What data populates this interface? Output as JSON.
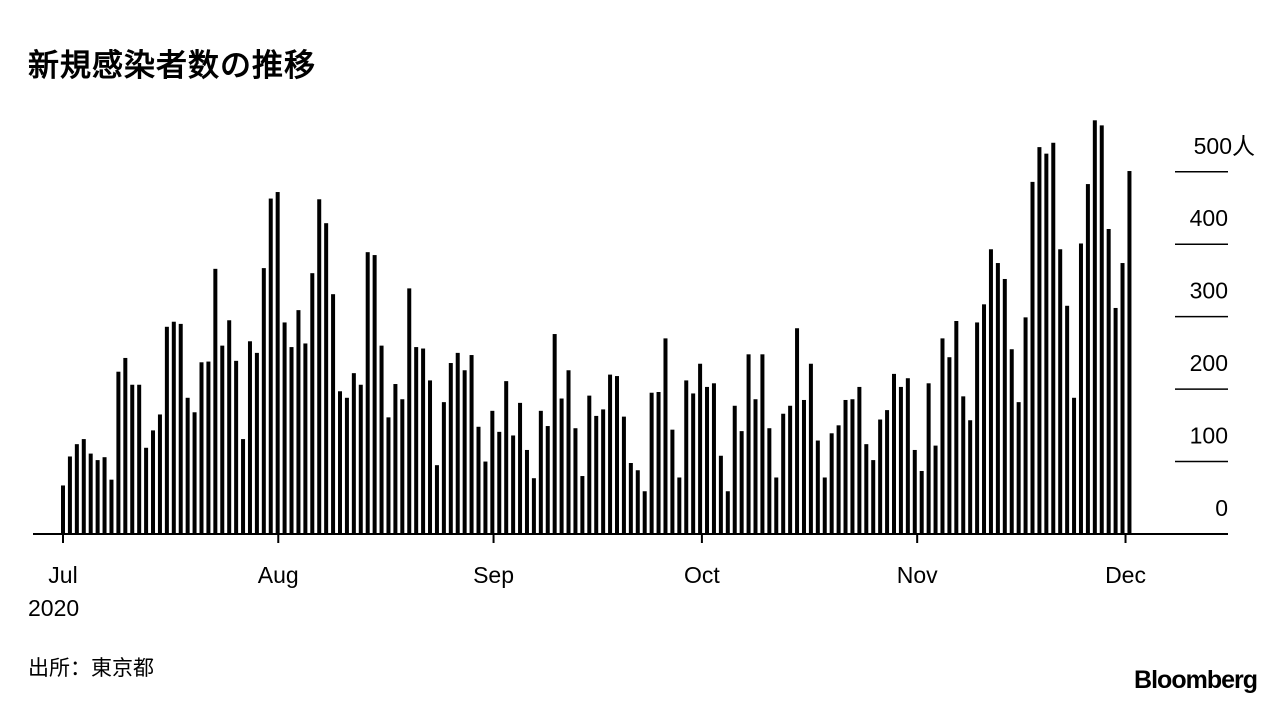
{
  "title": "新規感染者数の推移",
  "source": "出所：東京都",
  "logo": "Bloomberg",
  "chart_data": {
    "type": "bar",
    "title": "新規感染者数の推移",
    "x_start": "2020-07-01",
    "x_end": "2020-12-02",
    "x_ticks": [
      {
        "label": "Jul",
        "date": "2020-07-01"
      },
      {
        "label": "Aug",
        "date": "2020-08-01"
      },
      {
        "label": "Sep",
        "date": "2020-09-01"
      },
      {
        "label": "Oct",
        "date": "2020-10-01"
      },
      {
        "label": "Nov",
        "date": "2020-11-01"
      },
      {
        "label": "Dec",
        "date": "2020-12-01"
      }
    ],
    "x_year_label": "2020",
    "y_ticks": [
      "0",
      "100",
      "200",
      "300",
      "400",
      "500人"
    ],
    "y_tick_values": [
      0,
      100,
      200,
      300,
      400,
      500
    ],
    "ylim": [
      0,
      590
    ],
    "y_axis_side": "right",
    "grid": "short gridlines on right only",
    "bar_color": "#000000",
    "values": [
      67,
      107,
      124,
      131,
      111,
      102,
      106,
      75,
      224,
      243,
      206,
      206,
      119,
      143,
      165,
      286,
      293,
      290,
      188,
      168,
      237,
      238,
      366,
      260,
      295,
      239,
      131,
      266,
      250,
      367,
      463,
      472,
      292,
      258,
      309,
      263,
      360,
      462,
      429,
      331,
      197,
      188,
      222,
      206,
      389,
      385,
      260,
      161,
      207,
      186,
      339,
      258,
      256,
      212,
      95,
      182,
      236,
      250,
      226,
      247,
      148,
      100,
      170,
      141,
      211,
      136,
      181,
      116,
      77,
      170,
      149,
      276,
      187,
      226,
      146,
      80,
      191,
      163,
      172,
      220,
      218,
      162,
      98,
      88,
      59,
      195,
      196,
      270,
      144,
      78,
      212,
      194,
      235,
      203,
      208,
      108,
      59,
      177,
      142,
      248,
      186,
      248,
      146,
      78,
      166,
      177,
      284,
      185,
      235,
      129,
      78,
      139,
      150,
      185,
      186,
      203,
      124,
      102,
      158,
      171,
      221,
      203,
      215,
      116,
      87,
      208,
      122,
      270,
      244,
      294,
      190,
      157,
      292,
      317,
      393,
      374,
      352,
      255,
      182,
      299,
      486,
      534,
      525,
      540,
      393,
      315,
      188,
      401,
      483,
      571,
      564,
      421,
      312,
      374,
      501
    ]
  }
}
